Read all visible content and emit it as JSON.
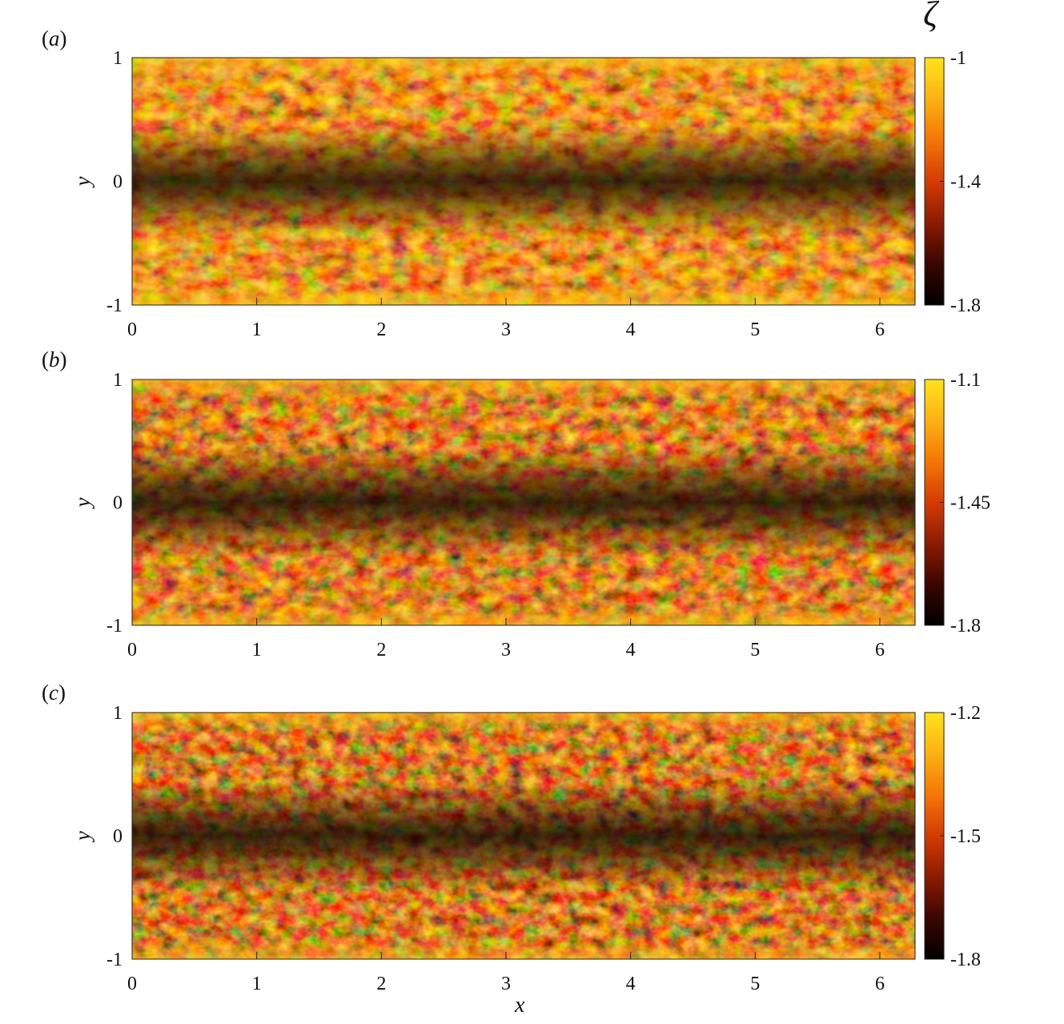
{
  "colorbar_title": "ζ",
  "colors": {
    "colormap": [
      "#000000",
      "#3a0600",
      "#8a1b02",
      "#d43b04",
      "#f47607",
      "#fbb214",
      "#ffe31a"
    ]
  },
  "chart_data": [
    {
      "type": "heatmap",
      "panel_label": "a",
      "xlabel": "",
      "ylabel": "y",
      "xlim": [
        0,
        6.283
      ],
      "ylim": [
        -1,
        1
      ],
      "xticks": [
        0,
        1,
        2,
        3,
        4,
        5,
        6
      ],
      "yticks": [
        -1,
        0,
        1
      ],
      "colorbar": {
        "min": -1.8,
        "max": -1,
        "ticks": [
          -1,
          -1.4,
          -1.8
        ]
      },
      "field_description": "instantaneous snapshot of a turbulent channel flow variable; low values form a band near the centerline"
    },
    {
      "type": "heatmap",
      "panel_label": "b",
      "xlabel": "",
      "ylabel": "y",
      "xlim": [
        0,
        6.283
      ],
      "ylim": [
        -1,
        1
      ],
      "xticks": [
        0,
        1,
        2,
        3,
        4,
        5,
        6
      ],
      "yticks": [
        -1,
        0,
        1
      ],
      "colorbar": {
        "min": -1.8,
        "max": -1.1,
        "ticks": [
          -1.1,
          -1.45,
          -1.8
        ]
      }
    },
    {
      "type": "heatmap",
      "panel_label": "c",
      "xlabel": "x",
      "ylabel": "y",
      "xlim": [
        0,
        6.283
      ],
      "ylim": [
        -1,
        1
      ],
      "xticks": [
        0,
        1,
        2,
        3,
        4,
        5,
        6
      ],
      "yticks": [
        -1,
        0,
        1
      ],
      "colorbar": {
        "min": -1.8,
        "max": -1.2,
        "ticks": [
          -1.2,
          -1.5,
          -1.8
        ]
      }
    }
  ]
}
